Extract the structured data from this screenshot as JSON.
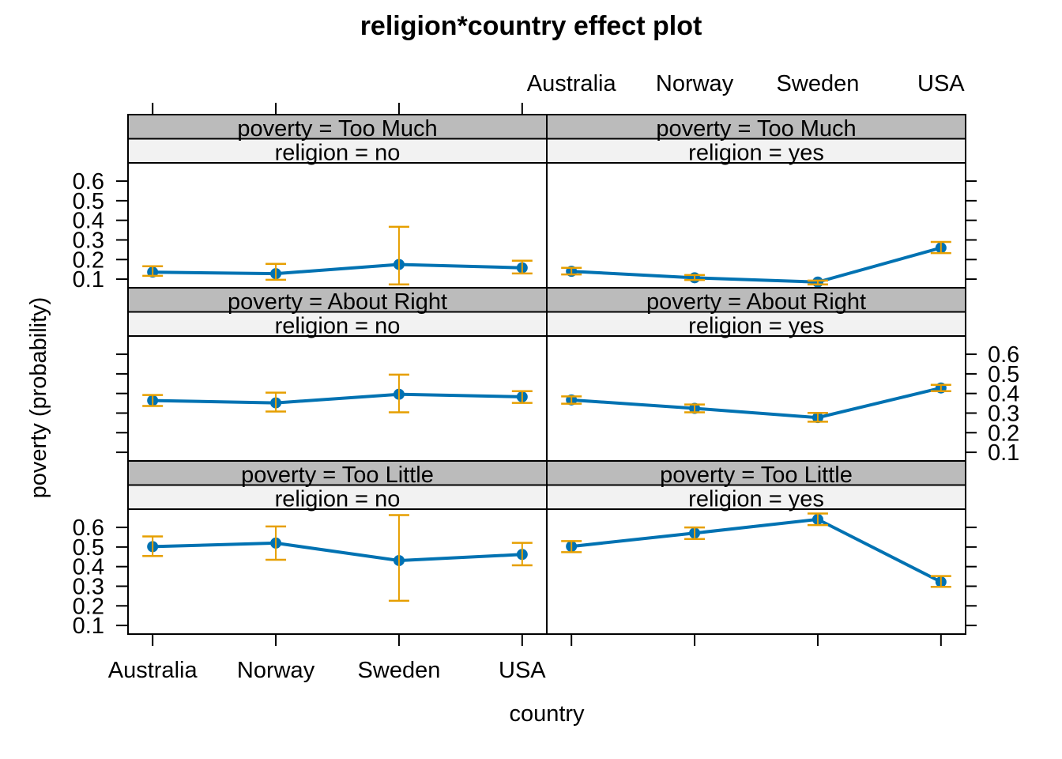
{
  "chart_data": {
    "type": "line",
    "title": "religion*country effect plot",
    "xlabel": "country",
    "ylabel": "poverty (probability)",
    "categories": [
      "Australia",
      "Norway",
      "Sweden",
      "USA"
    ],
    "yticks": [
      0.1,
      0.2,
      0.3,
      0.4,
      0.5,
      0.6
    ],
    "ytick_labels": [
      "0.1",
      "0.2",
      "0.3",
      "0.4",
      "0.5",
      "0.6"
    ],
    "ylim": [
      0.056,
      0.693
    ],
    "grid": false,
    "colors": {
      "line": "#0072B2",
      "ci": "#E69F00",
      "strip_outer": "#BBBBBB",
      "strip_inner": "#F2F2F2"
    },
    "panels": [
      {
        "strip1": "poverty = Too Much",
        "strip2": "religion = no",
        "fit": [
          0.136,
          0.128,
          0.175,
          0.158
        ],
        "lower": [
          0.117,
          0.097,
          0.073,
          0.129
        ],
        "upper": [
          0.166,
          0.178,
          0.367,
          0.194
        ]
      },
      {
        "strip1": "poverty = Too Much",
        "strip2": "religion = yes",
        "fit": [
          0.14,
          0.107,
          0.085,
          0.26
        ],
        "lower": [
          0.124,
          0.096,
          0.073,
          0.233
        ],
        "upper": [
          0.158,
          0.121,
          0.093,
          0.29
        ]
      },
      {
        "strip1": "poverty = About Right",
        "strip2": "religion = no",
        "fit": [
          0.364,
          0.352,
          0.396,
          0.383
        ],
        "lower": [
          0.336,
          0.308,
          0.304,
          0.352
        ],
        "upper": [
          0.392,
          0.404,
          0.496,
          0.412
        ]
      },
      {
        "strip1": "poverty = About Right",
        "strip2": "religion = yes",
        "fit": [
          0.367,
          0.324,
          0.277,
          0.428
        ],
        "lower": [
          0.348,
          0.304,
          0.256,
          0.412
        ],
        "upper": [
          0.385,
          0.344,
          0.301,
          0.444
        ]
      },
      {
        "strip1": "poverty = Too Little",
        "strip2": "religion = no",
        "fit": [
          0.502,
          0.52,
          0.431,
          0.462
        ],
        "lower": [
          0.454,
          0.435,
          0.226,
          0.407
        ],
        "upper": [
          0.554,
          0.605,
          0.663,
          0.521
        ]
      },
      {
        "strip1": "poverty = Too Little",
        "strip2": "religion = yes",
        "fit": [
          0.503,
          0.571,
          0.641,
          0.322
        ],
        "lower": [
          0.474,
          0.541,
          0.612,
          0.297
        ],
        "upper": [
          0.53,
          0.6,
          0.671,
          0.352
        ]
      }
    ]
  }
}
